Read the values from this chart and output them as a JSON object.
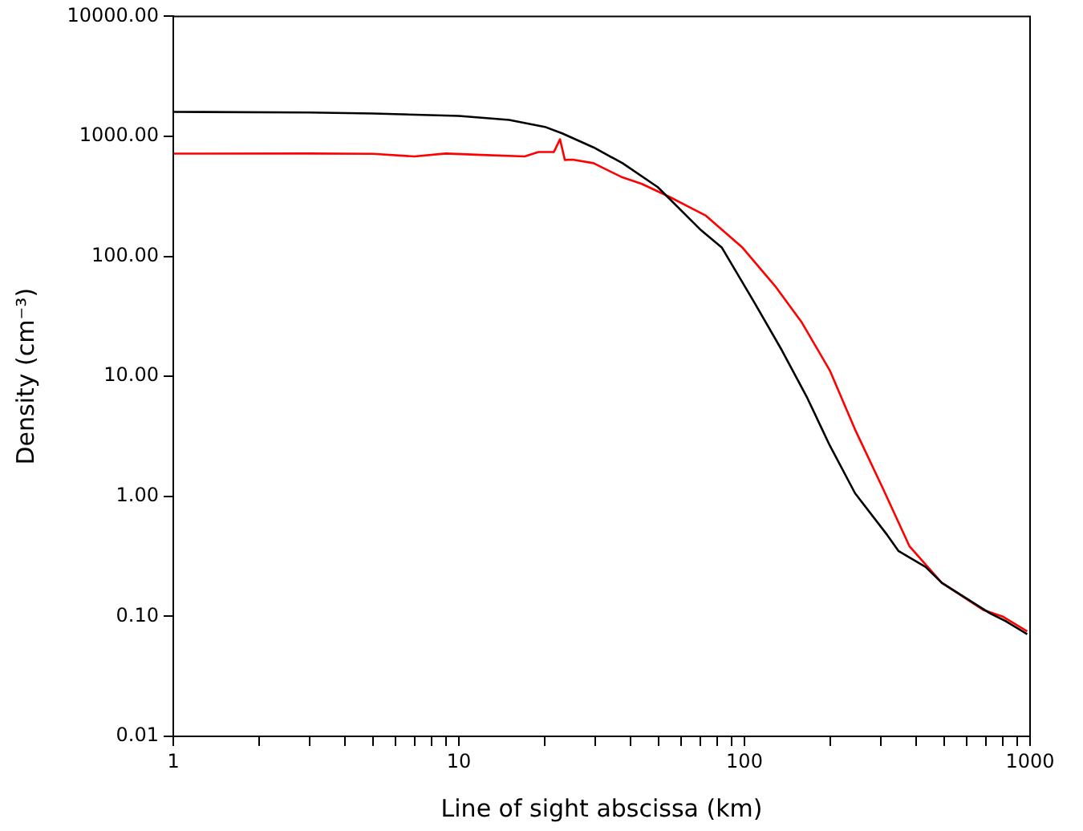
{
  "chart_data": {
    "type": "line",
    "xlabel": "Line of sight abscissa (km)",
    "ylabel": "Density (cm⁻³)",
    "log": "xy",
    "grid": false,
    "legend": false,
    "marker": "none",
    "line_style": "solid",
    "xlim": [
      1,
      1000
    ],
    "ylim": [
      0.01,
      10000
    ],
    "xticks": [
      1,
      {
        "value": 2,
        "label": null
      },
      {
        "value": 3,
        "label": null
      },
      {
        "value": 4,
        "label": null
      },
      {
        "value": 5,
        "label": null
      },
      {
        "value": 6,
        "label": null
      },
      {
        "value": 7,
        "label": null
      },
      {
        "value": 8,
        "label": null
      },
      {
        "value": 9,
        "label": null
      },
      10,
      {
        "value": 20,
        "label": null
      },
      {
        "value": 30,
        "label": null
      },
      {
        "value": 40,
        "label": null
      },
      {
        "value": 50,
        "label": null
      },
      {
        "value": 60,
        "label": null
      },
      {
        "value": 70,
        "label": null
      },
      {
        "value": 80,
        "label": null
      },
      {
        "value": 90,
        "label": null
      },
      100,
      {
        "value": 200,
        "label": null
      },
      {
        "value": 300,
        "label": null
      },
      {
        "value": 400,
        "label": null
      },
      {
        "value": 500,
        "label": null
      },
      {
        "value": 600,
        "label": null
      },
      {
        "value": 700,
        "label": null
      },
      {
        "value": 800,
        "label": null
      },
      {
        "value": 900,
        "label": null
      },
      1000
    ],
    "yticks": [
      0.01,
      {
        "value": 0.1,
        "label": "0.10"
      },
      {
        "value": 1,
        "label": "1.00"
      },
      {
        "value": 10,
        "label": "10.00"
      },
      {
        "value": 100,
        "label": "100.00"
      },
      {
        "value": 1000,
        "label": "1000.00"
      },
      {
        "value": 10000,
        "label": "10000.00"
      }
    ],
    "series": [
      {
        "color": "#000000",
        "x": [
          1,
          3,
          5,
          10,
          15,
          20,
          23,
          29.6,
          37.4,
          49.7,
          70.5,
          83.4,
          108,
          135,
          166,
          199,
          244,
          316,
          346,
          431,
          491,
          724,
          824,
          977
        ],
        "values": [
          1600,
          1580,
          1550,
          1480,
          1370,
          1200,
          1060,
          810,
          598,
          378,
          165,
          118,
          41.7,
          16.6,
          6.6,
          2.65,
          1.06,
          0.477,
          0.351,
          0.258,
          0.19,
          0.106,
          0.091,
          0.071
        ]
      },
      {
        "color": "#ff0000",
        "x": [
          1,
          3,
          5,
          7,
          9,
          12,
          17,
          19,
          21.5,
          22.6,
          23.5,
          25,
          29.6,
          37,
          43.7,
          54.5,
          73.3,
          98.5,
          128,
          159,
          199,
          244,
          304,
          378,
          491,
          686,
          800,
          977
        ],
        "values": [
          718,
          720,
          715,
          680,
          720,
          700,
          680,
          740,
          740,
          946,
          636,
          640,
          598,
          460,
          402,
          314,
          218,
          118,
          56.6,
          28,
          11.2,
          3.6,
          1.19,
          0.385,
          0.19,
          0.113,
          0.1,
          0.075
        ]
      }
    ]
  }
}
